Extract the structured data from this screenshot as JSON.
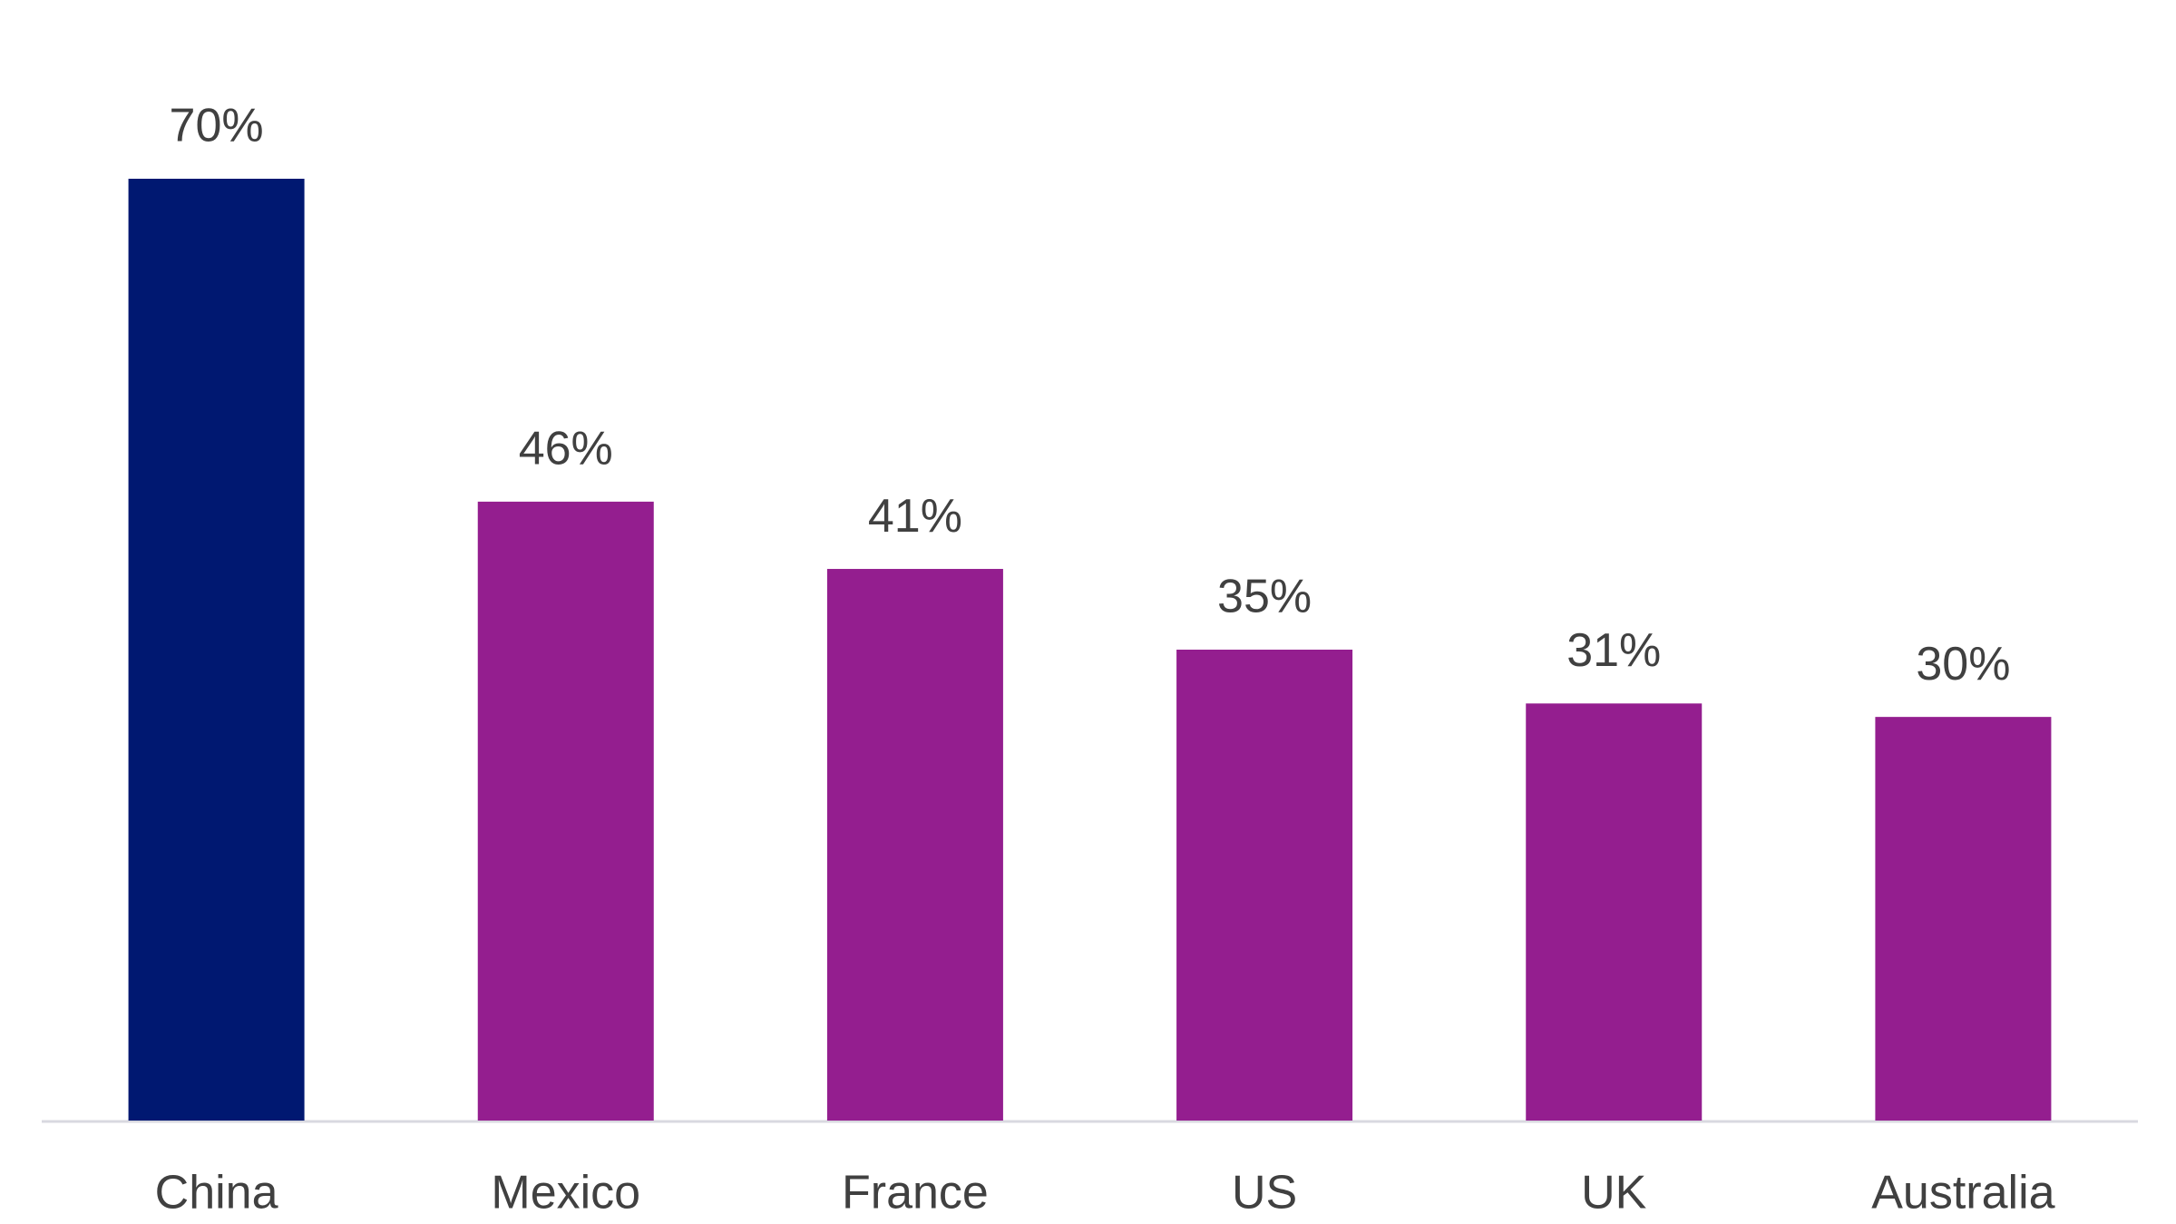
{
  "chart_data": {
    "type": "bar",
    "categories": [
      "China",
      "Mexico",
      "France",
      "US",
      "UK",
      "Australia"
    ],
    "values": [
      70,
      46,
      41,
      35,
      31,
      30
    ],
    "value_labels": [
      "70%",
      "46%",
      "41%",
      "35%",
      "31%",
      "30%"
    ],
    "colors": [
      "#001871",
      "#941e8f",
      "#941e8f",
      "#941e8f",
      "#941e8f",
      "#941e8f"
    ]
  }
}
